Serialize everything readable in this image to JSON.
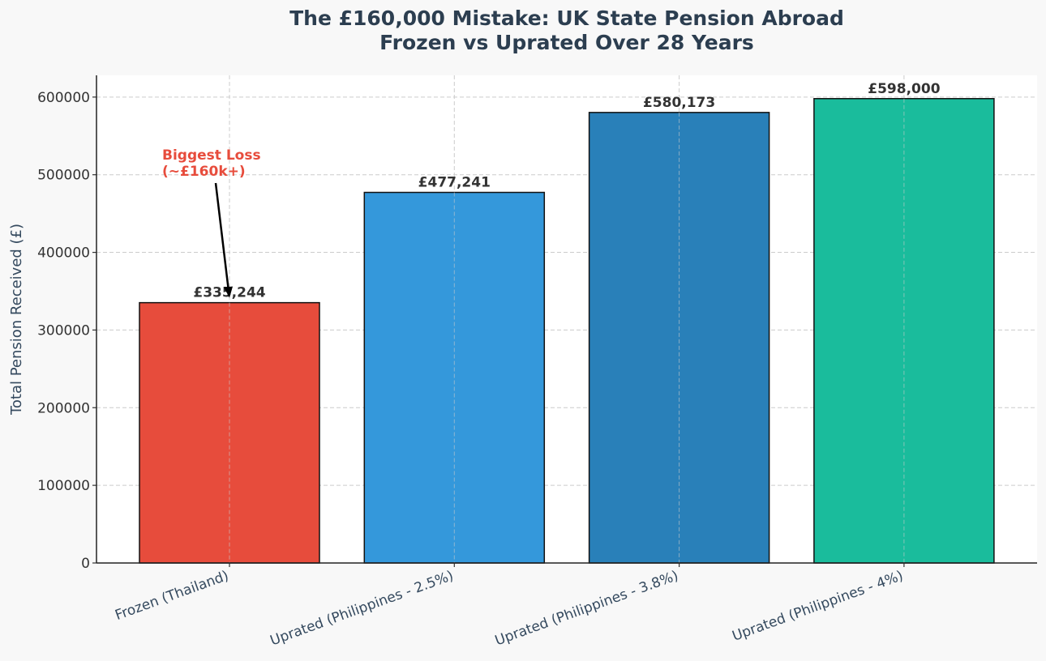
{
  "chart_data": {
    "type": "bar",
    "title": [
      "The £160,000 Mistake: UK State Pension Abroad",
      "Frozen vs Uprated Over 28 Years"
    ],
    "xlabel": "",
    "ylabel": "Total Pension Received (£)",
    "categories": [
      "Frozen (Thailand)",
      "Uprated (Philippines - 2.5%)",
      "Uprated (Philippines - 3.8%)",
      "Uprated (Philippines - 4%)"
    ],
    "values": [
      335244,
      477241,
      580173,
      598000
    ],
    "value_labels": [
      "£335,244",
      "£477,241",
      "£580,173",
      "£598,000"
    ],
    "colors": [
      "#e74c3c",
      "#3498db",
      "#2980b9",
      "#1abc9c"
    ],
    "ylim": [
      0,
      628000
    ],
    "yticks": [
      0,
      100000,
      200000,
      300000,
      400000,
      500000,
      600000
    ],
    "ytick_labels": [
      "0",
      "100000",
      "200000",
      "300000",
      "400000",
      "500000",
      "600000"
    ],
    "grid": true,
    "annotation": {
      "lines": [
        "Biggest Loss",
        "(~£160k+)"
      ],
      "color": "#e74c3c",
      "target_category": "Frozen (Thailand)",
      "target_value": 335244
    }
  }
}
